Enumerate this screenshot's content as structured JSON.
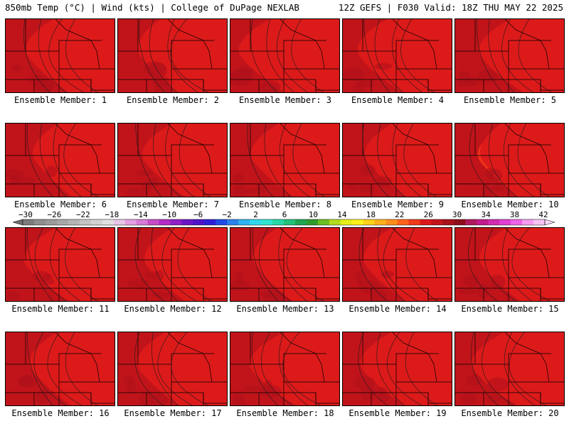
{
  "header": {
    "left_title": "850mb Temp (°C) | Wind (kts) | College of DuPage NEXLAB",
    "right_title": "12Z GEFS | F030 Valid: 18Z THU MAY 22 2025"
  },
  "members": [
    {
      "label": "Ensemble Member: 1",
      "warmth": 0.55
    },
    {
      "label": "Ensemble Member: 2",
      "warmth": 0.55
    },
    {
      "label": "Ensemble Member: 3",
      "warmth": 0.6
    },
    {
      "label": "Ensemble Member: 4",
      "warmth": 0.55
    },
    {
      "label": "Ensemble Member: 5",
      "warmth": 0.4
    },
    {
      "label": "Ensemble Member: 6",
      "warmth": 0.4
    },
    {
      "label": "Ensemble Member: 7",
      "warmth": 0.35
    },
    {
      "label": "Ensemble Member: 8",
      "warmth": 0.45
    },
    {
      "label": "Ensemble Member: 9",
      "warmth": 0.4
    },
    {
      "label": "Ensemble Member: 10",
      "warmth": 0.45
    },
    {
      "label": "Ensemble Member: 11",
      "warmth": 0.45
    },
    {
      "label": "Ensemble Member: 12",
      "warmth": 0.35
    },
    {
      "label": "Ensemble Member: 13",
      "warmth": 0.5
    },
    {
      "label": "Ensemble Member: 14",
      "warmth": 0.45
    },
    {
      "label": "Ensemble Member: 15",
      "warmth": 0.4
    },
    {
      "label": "Ensemble Member: 16",
      "warmth": 0.4
    },
    {
      "label": "Ensemble Member: 17",
      "warmth": 0.45
    },
    {
      "label": "Ensemble Member: 18",
      "warmth": 0.35
    },
    {
      "label": "Ensemble Member: 19",
      "warmth": 0.45
    },
    {
      "label": "Ensemble Member: 20",
      "warmth": 0.45
    }
  ],
  "colorbar": {
    "tick_labels": [
      "−30",
      "−26",
      "−22",
      "−18",
      "−14",
      "−10",
      "−6",
      "−2",
      "2",
      "6",
      "10",
      "14",
      "18",
      "22",
      "26",
      "30",
      "34",
      "38",
      "42"
    ],
    "colors": [
      "#7c7c7c",
      "#8e8e8e",
      "#9a9a9a",
      "#a8a8a8",
      "#b5b5b5",
      "#c4c4c4",
      "#d2d2d2",
      "#e0e0e0",
      "#e6c6e6",
      "#e39fe3",
      "#d67bd6",
      "#c64cc6",
      "#b32bc6",
      "#8f1fc6",
      "#6a16c6",
      "#4e14c9",
      "#2b20d6",
      "#1e4be6",
      "#2a82ec",
      "#2fb3ee",
      "#2fd9ee",
      "#2de6d0",
      "#27d9a5",
      "#22c27a",
      "#1fa64f",
      "#2f9a2c",
      "#6abf1f",
      "#b3dc1c",
      "#e6ee1a",
      "#fff21a",
      "#ffd21a",
      "#ffb01a",
      "#ff8e1a",
      "#ff641a",
      "#f03a1a",
      "#dc1a1a",
      "#c4141a",
      "#a8101a",
      "#8e0c1a",
      "#b01a5e",
      "#c21c8e",
      "#d22cb0",
      "#e240d0",
      "#ee62e6",
      "#f49af0",
      "#f7c4f4"
    ]
  }
}
